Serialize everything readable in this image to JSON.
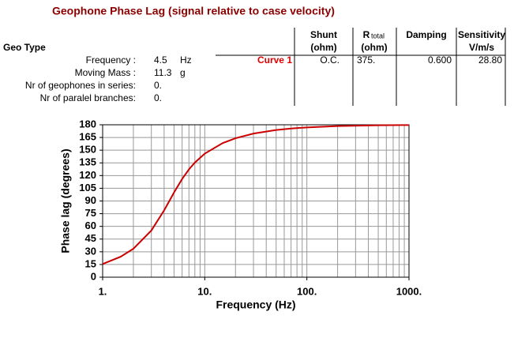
{
  "header": {
    "title": "Geophone Phase Lag (signal relative to case velocity)",
    "geo_type": "Geo Type",
    "params": [
      {
        "label": "Frequency :",
        "value": "4.5",
        "unit": "Hz"
      },
      {
        "label": "Moving Mass :",
        "value": "11.3",
        "unit": "g"
      },
      {
        "label": "Nr of geophones in series:",
        "value": "0."
      },
      {
        "label": "Nr of paralel branches:",
        "value": "0."
      }
    ]
  },
  "table": {
    "columns": [
      {
        "title": "Shunt",
        "sub": "(ohm)"
      },
      {
        "title": "R",
        "small": "total",
        "sub": "(ohm)"
      },
      {
        "title": "Damping"
      },
      {
        "title": "Sensitivity",
        "sub": "V/m/s"
      }
    ],
    "rows": [
      {
        "name": "Curve 1",
        "cells": [
          "O.C.",
          "375.",
          "0.600",
          "28.80"
        ]
      }
    ]
  },
  "chart_data": {
    "type": "line",
    "x_label": "Frequency (Hz)",
    "y_label": "Phase lag (degrees)",
    "x": [
      1,
      1.5,
      2,
      3,
      4,
      4.5,
      5,
      6,
      7,
      8,
      10,
      15,
      20,
      30,
      50,
      70,
      100,
      200,
      500,
      1000
    ],
    "series": [
      {
        "name": "Curve 1",
        "color": "#cc0000",
        "values": [
          15.6,
          24.2,
          33.6,
          55.2,
          78.9,
          90,
          100,
          115.9,
          127.3,
          135.4,
          145.9,
          158.4,
          164.1,
          169.6,
          173.8,
          175.6,
          176.9,
          178.5,
          179.4,
          179.7
        ]
      }
    ],
    "xlim": [
      1,
      1000
    ],
    "ylim": [
      0,
      180
    ],
    "xscale": "log",
    "grid": true,
    "xticks": [
      {
        "value": 1,
        "label": "1."
      },
      {
        "value": 10,
        "label": "10."
      },
      {
        "value": 100,
        "label": "100."
      },
      {
        "value": 1000,
        "label": "1000."
      }
    ],
    "yticks": [
      0,
      15,
      30,
      45,
      60,
      75,
      90,
      105,
      120,
      135,
      150,
      165,
      180
    ]
  }
}
